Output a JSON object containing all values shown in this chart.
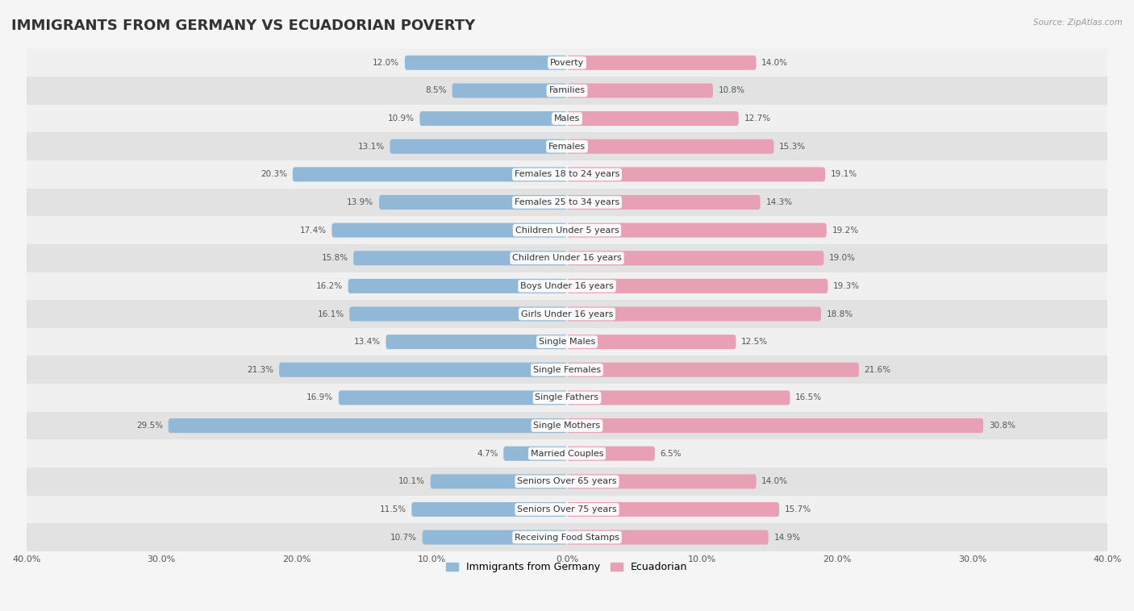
{
  "title": "IMMIGRANTS FROM GERMANY VS ECUADORIAN POVERTY",
  "source": "Source: ZipAtlas.com",
  "categories": [
    "Poverty",
    "Families",
    "Males",
    "Females",
    "Females 18 to 24 years",
    "Females 25 to 34 years",
    "Children Under 5 years",
    "Children Under 16 years",
    "Boys Under 16 years",
    "Girls Under 16 years",
    "Single Males",
    "Single Females",
    "Single Fathers",
    "Single Mothers",
    "Married Couples",
    "Seniors Over 65 years",
    "Seniors Over 75 years",
    "Receiving Food Stamps"
  ],
  "left_values": [
    12.0,
    8.5,
    10.9,
    13.1,
    20.3,
    13.9,
    17.4,
    15.8,
    16.2,
    16.1,
    13.4,
    21.3,
    16.9,
    29.5,
    4.7,
    10.1,
    11.5,
    10.7
  ],
  "right_values": [
    14.0,
    10.8,
    12.7,
    15.3,
    19.1,
    14.3,
    19.2,
    19.0,
    19.3,
    18.8,
    12.5,
    21.6,
    16.5,
    30.8,
    6.5,
    14.0,
    15.7,
    14.9
  ],
  "left_color": "#92b8d8",
  "right_color": "#e8a0b4",
  "left_label": "Immigrants from Germany",
  "right_label": "Ecuadorian",
  "axis_max": 40.0,
  "background_color": "#f5f5f5",
  "row_bg_light": "#f0f0f0",
  "row_bg_dark": "#e2e2e2",
  "bar_height": 0.52,
  "title_fontsize": 13,
  "label_fontsize": 8.0,
  "value_fontsize": 7.5
}
